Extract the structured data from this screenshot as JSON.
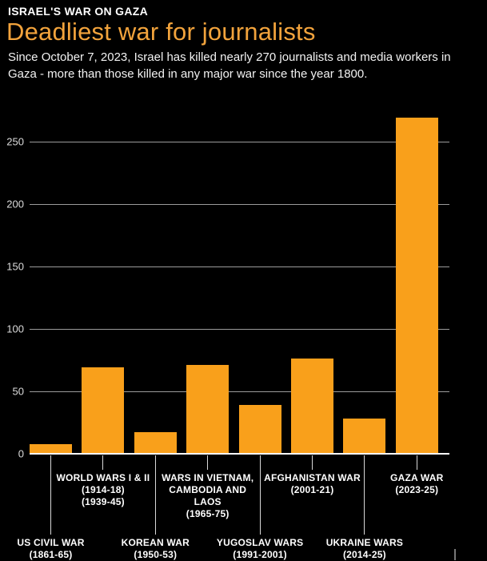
{
  "header": {
    "kicker": "ISRAEL'S WAR ON GAZA",
    "title": "Deadliest war for journalists",
    "subtitle": "Since October 7, 2023, Israel has killed nearly 270 journalists and media workers in Gaza - more than those killed in any major war since the year 1800."
  },
  "colors": {
    "background": "#000000",
    "bar_orange": "#F9A01B",
    "title_orange": "#F2A33C",
    "gridline_gray": "#9B9B9B",
    "axis_white": "#FFFFFF",
    "label_white": "#FFFFFF"
  },
  "chart_data": {
    "type": "bar",
    "title": "Deadliest war for journalists",
    "xlabel": "",
    "ylabel": "",
    "categories": [
      "US Civil War (1861-65)",
      "World Wars I & II (1914-18, 1939-45)",
      "Korean War (1950-53)",
      "Wars in Vietnam, Cambodia and Laos (1965-75)",
      "Yugoslav Wars (1991-2001)",
      "Afghanistan War (2001-21)",
      "Ukraine Wars (2014-25)",
      "Gaza War (2023-25)"
    ],
    "values": [
      8,
      69,
      17,
      71,
      39,
      76,
      28,
      269
    ],
    "y_ticks": [
      0,
      50,
      100,
      150,
      200,
      250
    ],
    "ylim": [
      0,
      280
    ],
    "grid": true,
    "legend": "none",
    "bar_color": "#F9A01B",
    "category_labels": [
      {
        "slug": "us-civil-war",
        "row": "lower",
        "lines": [
          "US CIVIL WAR",
          "(1861-65)"
        ]
      },
      {
        "slug": "world-wars-i-ii",
        "row": "upper",
        "lines": [
          "WORLD WARS I & II",
          "(1914-18)",
          "(1939-45)"
        ]
      },
      {
        "slug": "korean-war",
        "row": "lower",
        "lines": [
          "KOREAN WAR",
          "(1950-53)"
        ]
      },
      {
        "slug": "vietnam-cambodia-laos",
        "row": "upper",
        "lines": [
          "WARS IN VIETNAM,",
          "CAMBODIA AND",
          "LAOS",
          "(1965-75)"
        ]
      },
      {
        "slug": "yugoslav-wars",
        "row": "lower",
        "lines": [
          "YUGOSLAV WARS",
          "(1991-2001)"
        ]
      },
      {
        "slug": "afghanistan-war",
        "row": "upper",
        "lines": [
          "AFGHANISTAN WAR",
          "(2001-21)"
        ]
      },
      {
        "slug": "ukraine-wars",
        "row": "lower",
        "lines": [
          "UKRAINE WARS",
          "(2014-25)"
        ]
      },
      {
        "slug": "gaza-war",
        "row": "upper",
        "lines": [
          "GAZA WAR",
          "(2023-25)"
        ]
      }
    ]
  }
}
